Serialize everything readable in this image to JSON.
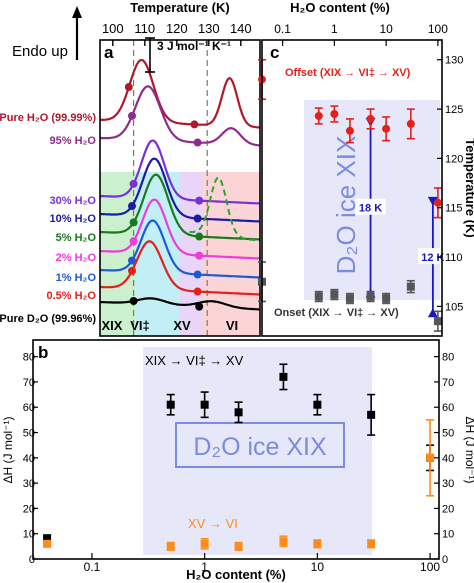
{
  "figure": {
    "endo_label": "Endo up",
    "panel_a_label": "a",
    "panel_b_label": "b",
    "panel_c_label": "c",
    "scale_bar_label": "3 J mol⁻¹ K⁻¹"
  },
  "chart_data": [
    {
      "type": "line",
      "panel": "a",
      "title": "",
      "xlabel": "Temperature (K)",
      "xlim": [
        96,
        146
      ],
      "x_ticks": [
        100,
        110,
        120,
        130,
        140
      ],
      "ylabel": "Endo up",
      "dashed_lines_K": [
        106.5,
        129.5
      ],
      "regions": [
        {
          "label": "XIX",
          "from_K": 96,
          "to_K": 107,
          "color": "#9fe3a4"
        },
        {
          "label": "VI‡",
          "from_K": 107,
          "to_K": 121,
          "color": "#8fe2ef"
        },
        {
          "label": "XV",
          "from_K": 121,
          "to_K": 128,
          "color": "#d5b3f3"
        },
        {
          "label": "VI",
          "from_K": 128,
          "to_K": 146,
          "color": "#f8b3b3"
        }
      ],
      "series": [
        {
          "name": "Pure H₂O (99.99%)",
          "color": "#b2182b",
          "onset_K": 105.0,
          "peak_K": 109.0,
          "second_peak_K": 136.5
        },
        {
          "name": "95% H₂O",
          "color": "#8e2c8e",
          "onset_K": 106.0,
          "peak_K": 111.0
        },
        {
          "name": "30% H₂O",
          "color": "#7b2fd6",
          "onset_K": 106.5,
          "peak_K": 112.5
        },
        {
          "name": "10% H₂O",
          "color": "#1c1ca3",
          "onset_K": 106.0,
          "peak_K": 113.0
        },
        {
          "name": "5% H₂O",
          "color": "#1a7a1a",
          "onset_K": 106.5,
          "peak_K": 113.5
        },
        {
          "name": "2% H₂O",
          "color": "#ee3bd9",
          "onset_K": 106.5,
          "peak_K": 113.0
        },
        {
          "name": "1% H₂O",
          "color": "#1f5ad6",
          "onset_K": 106.0,
          "peak_K": 112.5
        },
        {
          "name": "0.5% H₂O",
          "color": "#e4201b",
          "onset_K": 106.0,
          "peak_K": 111.5
        },
        {
          "name": "Pure D₂O (99.96%)",
          "color": "#000000",
          "onset_K": 106.5,
          "peak_K": 112.0
        }
      ],
      "region_labels": [
        "XIX",
        "VI‡",
        "XV",
        "VI"
      ]
    },
    {
      "type": "scatter",
      "panel": "b",
      "xlabel": "H₂O content (%)",
      "x_scale": "log",
      "xlim": [
        0.03,
        120
      ],
      "x_ticks": [
        "0.1",
        "1",
        "10",
        "100"
      ],
      "ylabel": "ΔH (J mol⁻¹)",
      "ylim": [
        0,
        85
      ],
      "y_ticks": [
        0,
        10,
        20,
        30,
        40,
        50,
        60,
        70,
        80
      ],
      "box_label": "D₂O ice XIX",
      "series": [
        {
          "name": "XIX → VI‡ → XV",
          "color": "#000000",
          "x": [
            0.04,
            0.5,
            1,
            2,
            5,
            10,
            30,
            100
          ],
          "y": [
            8,
            61,
            61,
            58,
            72,
            61,
            57,
            40
          ],
          "err": [
            1.5,
            4,
            5,
            4,
            5,
            4,
            8,
            5
          ]
        },
        {
          "name": "XV → VI",
          "color": "#ff8c1a",
          "x": [
            0.04,
            0.5,
            1,
            2,
            5,
            10,
            30,
            100
          ],
          "y": [
            6,
            5,
            6,
            5,
            7,
            6,
            6,
            40
          ],
          "err": [
            1,
            1.5,
            2,
            1.5,
            2,
            1.5,
            1.5,
            15
          ]
        }
      ]
    },
    {
      "type": "scatter",
      "panel": "c",
      "x_top_label": "H₂O content (%)",
      "x_scale": "log",
      "xlim": [
        0.04,
        120
      ],
      "x_ticks": [
        "0.1",
        "1",
        "10",
        "100"
      ],
      "ylabel": "Temperature (K)",
      "ylim": [
        102,
        132
      ],
      "y_ticks": [
        105,
        110,
        115,
        120,
        125,
        130
      ],
      "box_label": "D₂O ice XIX",
      "annotations": [
        {
          "text": "18 K",
          "x": 5,
          "from": 106,
          "to": 124
        },
        {
          "text": "12 K",
          "x": 80,
          "from": 104,
          "to": 116
        }
      ],
      "series": [
        {
          "name": "Offset (XIX → VI‡ → XV)",
          "color": "#e4201b",
          "x": [
            0.04,
            0.5,
            1,
            2,
            5,
            10,
            30,
            100
          ],
          "y": [
            128,
            124.3,
            124.5,
            122.8,
            124,
            123,
            123.5,
            115.5
          ],
          "err": [
            2,
            0.8,
            0.8,
            1.2,
            1.0,
            1.2,
            1.5,
            1.5
          ]
        },
        {
          "name": "Onset (XIX → VI‡ → XV)",
          "color": "#555555",
          "x": [
            0.04,
            0.5,
            1,
            2,
            5,
            10,
            30,
            100
          ],
          "y": [
            107.5,
            106,
            106.2,
            105.8,
            106,
            105.8,
            107,
            103.5
          ],
          "err": [
            2,
            0.5,
            0.5,
            0.5,
            0.5,
            0.5,
            0.6,
            1.0
          ]
        }
      ]
    }
  ]
}
